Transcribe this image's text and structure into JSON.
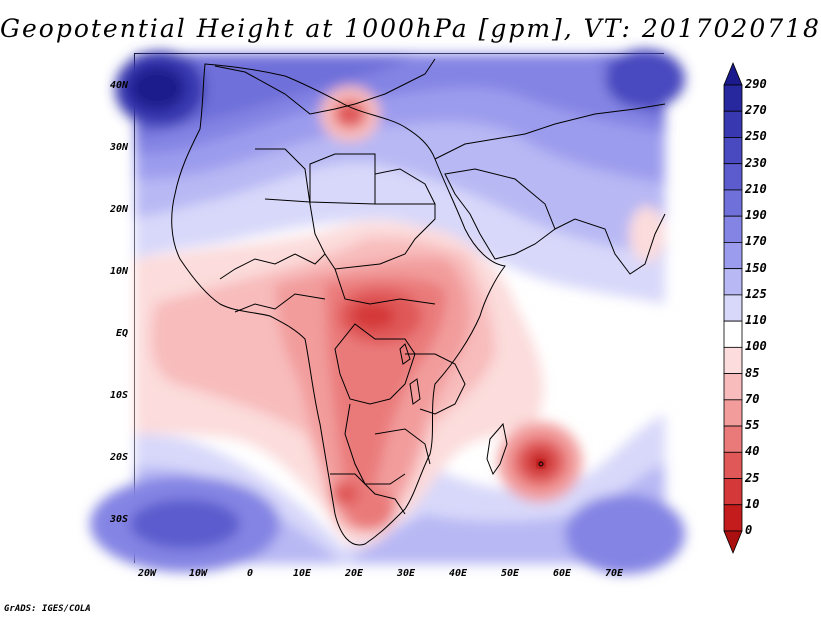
{
  "title": "Geopotential Height at 1000hPa [gpm], VT: 2017020718",
  "footer": "GrADS: IGES/COLA",
  "map": {
    "lat_labels": [
      "40N",
      "30N",
      "20N",
      "10N",
      "EQ",
      "10S",
      "20S",
      "30S"
    ],
    "lon_labels": [
      "20W",
      "10W",
      "0",
      "10E",
      "20E",
      "30E",
      "40E",
      "50E",
      "60E",
      "70E"
    ]
  },
  "colorbar": {
    "levels": [
      "290",
      "270",
      "250",
      "230",
      "210",
      "190",
      "170",
      "150",
      "125",
      "110",
      "100",
      "85",
      "70",
      "55",
      "40",
      "25",
      "10",
      "0"
    ],
    "colors": [
      "#1a1a8c",
      "#28289e",
      "#3838b0",
      "#4a4ac0",
      "#5c5cce",
      "#7070da",
      "#8484e4",
      "#9c9cee",
      "#b8b8f4",
      "#d8d8fa",
      "#ffffff",
      "#fcdcdc",
      "#f8bcbc",
      "#f29c9c",
      "#ea7a7a",
      "#e05858",
      "#d43838",
      "#c41c1c",
      "#aa1010"
    ]
  }
}
